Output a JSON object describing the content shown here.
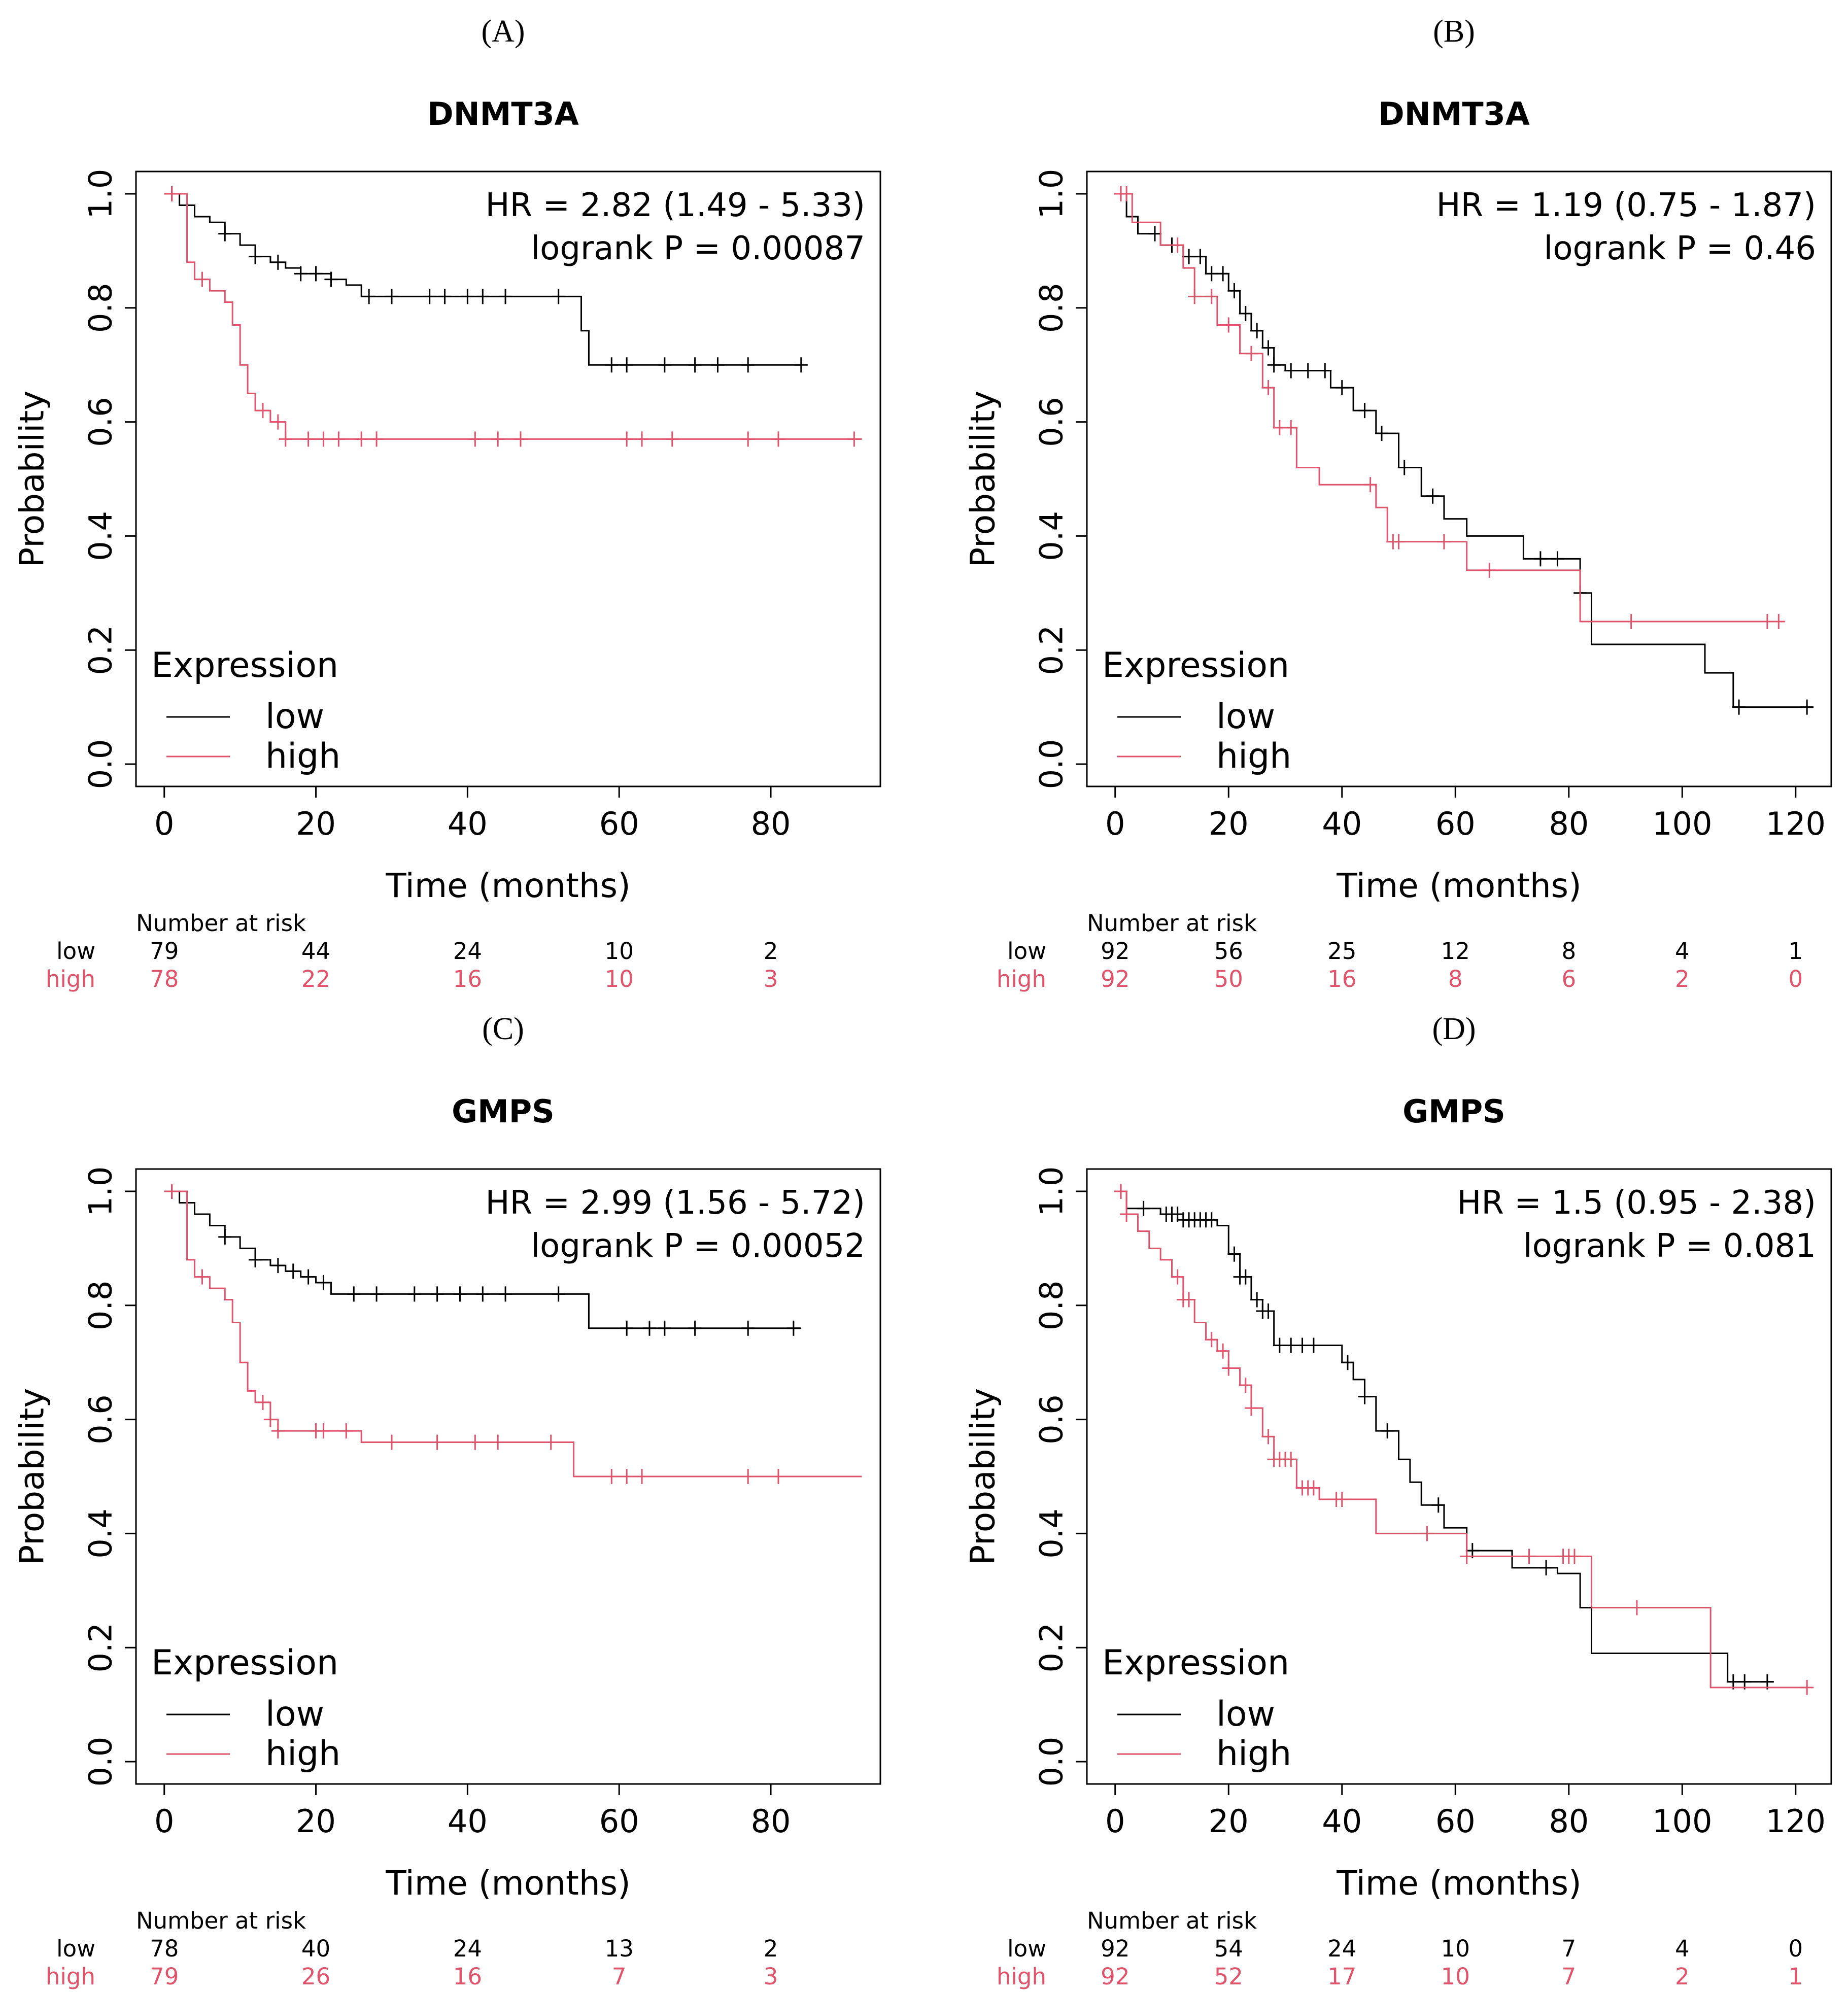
{
  "colors": {
    "low": "#000000",
    "high": "#DF536B"
  },
  "chart_data": [
    {
      "panel": "(A)",
      "type": "line",
      "title": "DNMT3A",
      "xlabel": "Time (months)",
      "ylabel": "Probability",
      "xlim": [
        0,
        92
      ],
      "ylim": [
        0,
        1
      ],
      "xticks": [
        0,
        20,
        40,
        60,
        80
      ],
      "yticks": [
        "0.0",
        "0.2",
        "0.4",
        "0.6",
        "0.8",
        "1.0"
      ],
      "hr_text": "HR = 2.82 (1.49 - 5.33)",
      "logrank_text": "logrank P = 0.00087",
      "legend_title": "Expression",
      "legend": [
        "low",
        "high"
      ],
      "risk_header": "Number at risk",
      "risk_rows": [
        {
          "label": "low",
          "values": [
            "79",
            "44",
            "24",
            "10",
            "2"
          ]
        },
        {
          "label": "high",
          "values": [
            "78",
            "22",
            "16",
            "10",
            "3"
          ]
        }
      ],
      "series": [
        {
          "name": "low",
          "x": [
            0,
            2,
            4,
            6,
            8,
            10,
            12,
            14,
            16,
            18,
            20,
            22,
            24,
            26,
            55,
            56,
            84
          ],
          "y": [
            1.0,
            0.98,
            0.96,
            0.95,
            0.93,
            0.91,
            0.89,
            0.88,
            0.87,
            0.86,
            0.86,
            0.85,
            0.84,
            0.82,
            0.76,
            0.7,
            0.7
          ],
          "censor_x": [
            1,
            8,
            12,
            15,
            18,
            20,
            22,
            27,
            30,
            35,
            37,
            40,
            42,
            45,
            52,
            59,
            61,
            66,
            70,
            73,
            77,
            84
          ]
        },
        {
          "name": "high",
          "x": [
            0,
            3,
            4,
            6,
            8,
            9,
            10,
            11,
            12,
            14,
            16,
            92
          ],
          "y": [
            1.0,
            0.88,
            0.85,
            0.83,
            0.81,
            0.77,
            0.7,
            0.65,
            0.62,
            0.6,
            0.57,
            0.57
          ],
          "censor_x": [
            1,
            5,
            13,
            15,
            16,
            19,
            21,
            23,
            26,
            28,
            41,
            44,
            47,
            61,
            63,
            67,
            77,
            81,
            91
          ]
        }
      ]
    },
    {
      "panel": "(B)",
      "type": "line",
      "title": "DNMT3A",
      "xlabel": "Time (months)",
      "ylabel": "Probability",
      "xlim": [
        0,
        123
      ],
      "ylim": [
        0,
        1
      ],
      "xticks": [
        0,
        20,
        40,
        60,
        80,
        100,
        120
      ],
      "yticks": [
        "0.0",
        "0.2",
        "0.4",
        "0.6",
        "0.8",
        "1.0"
      ],
      "hr_text": "HR = 1.19 (0.75 - 1.87)",
      "logrank_text": "logrank P = 0.46",
      "legend_title": "Expression",
      "legend": [
        "low",
        "high"
      ],
      "risk_header": "Number at risk",
      "risk_rows": [
        {
          "label": "low",
          "values": [
            "92",
            "56",
            "25",
            "12",
            "8",
            "4",
            "1"
          ]
        },
        {
          "label": "high",
          "values": [
            "92",
            "50",
            "16",
            "8",
            "6",
            "2",
            "0"
          ]
        }
      ],
      "series": [
        {
          "name": "low",
          "x": [
            0,
            2,
            4,
            8,
            12,
            16,
            20,
            22,
            24,
            26,
            28,
            30,
            38,
            42,
            46,
            50,
            54,
            58,
            62,
            72,
            82,
            84,
            92,
            104,
            109,
            123
          ],
          "y": [
            1.0,
            0.96,
            0.93,
            0.91,
            0.89,
            0.86,
            0.83,
            0.79,
            0.76,
            0.73,
            0.7,
            0.69,
            0.66,
            0.62,
            0.58,
            0.52,
            0.47,
            0.43,
            0.4,
            0.36,
            0.3,
            0.21,
            0.21,
            0.16,
            0.1,
            0.1
          ],
          "censor_x": [
            1,
            7,
            10,
            13,
            15,
            17,
            19,
            21,
            23,
            25,
            27,
            28,
            31,
            34,
            37,
            40,
            44,
            47,
            51,
            56,
            75,
            78,
            82,
            110,
            122
          ]
        },
        {
          "name": "high",
          "x": [
            0,
            3,
            8,
            12,
            14,
            18,
            22,
            26,
            28,
            32,
            36,
            46,
            48,
            62,
            82,
            84,
            116
          ],
          "y": [
            1.0,
            0.95,
            0.91,
            0.87,
            0.82,
            0.77,
            0.72,
            0.66,
            0.59,
            0.52,
            0.49,
            0.45,
            0.39,
            0.34,
            0.25,
            0.25,
            0.25
          ],
          "censor_x": [
            1,
            2,
            11,
            14,
            17,
            20,
            24,
            27,
            29,
            31,
            45,
            49,
            50,
            58,
            66,
            91,
            115,
            117
          ]
        }
      ]
    },
    {
      "panel": "(C)",
      "type": "line",
      "title": "GMPS",
      "xlabel": "Time (months)",
      "ylabel": "Probability",
      "xlim": [
        0,
        92
      ],
      "ylim": [
        0,
        1
      ],
      "xticks": [
        0,
        20,
        40,
        60,
        80
      ],
      "yticks": [
        "0.0",
        "0.2",
        "0.4",
        "0.6",
        "0.8",
        "1.0"
      ],
      "hr_text": "HR = 2.99 (1.56 - 5.72)",
      "logrank_text": "logrank P = 0.00052",
      "legend_title": "Expression",
      "legend": [
        "low",
        "high"
      ],
      "risk_header": "Number at risk",
      "risk_rows": [
        {
          "label": "low",
          "values": [
            "78",
            "40",
            "24",
            "13",
            "2"
          ]
        },
        {
          "label": "high",
          "values": [
            "79",
            "26",
            "16",
            "7",
            "3"
          ]
        }
      ],
      "series": [
        {
          "name": "low",
          "x": [
            0,
            2,
            4,
            6,
            8,
            10,
            12,
            14,
            16,
            18,
            20,
            22,
            56,
            84
          ],
          "y": [
            1.0,
            0.98,
            0.96,
            0.94,
            0.92,
            0.9,
            0.88,
            0.87,
            0.86,
            0.85,
            0.84,
            0.82,
            0.76,
            0.76
          ],
          "censor_x": [
            1,
            8,
            12,
            15,
            17,
            19,
            21,
            25,
            28,
            33,
            36,
            39,
            42,
            45,
            52,
            61,
            64,
            66,
            70,
            77,
            83
          ]
        },
        {
          "name": "high",
          "x": [
            0,
            3,
            4,
            6,
            8,
            9,
            10,
            11,
            12,
            14,
            15,
            26,
            54,
            92
          ],
          "y": [
            1.0,
            0.88,
            0.85,
            0.83,
            0.81,
            0.77,
            0.7,
            0.65,
            0.63,
            0.6,
            0.58,
            0.56,
            0.5,
            0.5
          ],
          "censor_x": [
            1,
            5,
            13,
            14,
            15,
            20,
            21,
            24,
            30,
            36,
            41,
            44,
            51,
            59,
            61,
            63,
            77,
            81
          ]
        }
      ]
    },
    {
      "panel": "(D)",
      "type": "line",
      "title": "GMPS",
      "xlabel": "Time (months)",
      "ylabel": "Probability",
      "xlim": [
        0,
        123
      ],
      "ylim": [
        0,
        1
      ],
      "xticks": [
        0,
        20,
        40,
        60,
        80,
        100,
        120
      ],
      "yticks": [
        "0.0",
        "0.2",
        "0.4",
        "0.6",
        "0.8",
        "1.0"
      ],
      "hr_text": "HR = 1.5 (0.95 - 2.38)",
      "logrank_text": "logrank P = 0.081",
      "legend_title": "Expression",
      "legend": [
        "low",
        "high"
      ],
      "risk_header": "Number at risk",
      "risk_rows": [
        {
          "label": "low",
          "values": [
            "92",
            "54",
            "24",
            "10",
            "7",
            "4",
            "0"
          ]
        },
        {
          "label": "high",
          "values": [
            "92",
            "52",
            "17",
            "10",
            "7",
            "2",
            "1"
          ]
        }
      ],
      "series": [
        {
          "name": "low",
          "x": [
            0,
            2,
            8,
            12,
            18,
            20,
            22,
            24,
            26,
            28,
            40,
            42,
            44,
            46,
            50,
            52,
            54,
            58,
            62,
            70,
            78,
            82,
            84,
            108,
            116
          ],
          "y": [
            1.0,
            0.97,
            0.96,
            0.95,
            0.94,
            0.89,
            0.85,
            0.81,
            0.79,
            0.73,
            0.7,
            0.67,
            0.64,
            0.58,
            0.53,
            0.49,
            0.45,
            0.41,
            0.37,
            0.34,
            0.33,
            0.27,
            0.19,
            0.14,
            0.14
          ],
          "censor_x": [
            1,
            5,
            9,
            10,
            11,
            12,
            13,
            14,
            15,
            16,
            17,
            21,
            22,
            23,
            25,
            26,
            27,
            29,
            31,
            33,
            35,
            41,
            44,
            48,
            57,
            63,
            76,
            109,
            111,
            115
          ]
        },
        {
          "name": "high",
          "x": [
            0,
            2,
            4,
            6,
            8,
            10,
            12,
            14,
            16,
            18,
            20,
            22,
            24,
            26,
            28,
            32,
            36,
            46,
            62,
            84,
            105,
            122
          ],
          "y": [
            1.0,
            0.96,
            0.93,
            0.9,
            0.88,
            0.85,
            0.81,
            0.77,
            0.74,
            0.72,
            0.69,
            0.66,
            0.62,
            0.57,
            0.53,
            0.48,
            0.46,
            0.4,
            0.36,
            0.27,
            0.13,
            0.13
          ],
          "censor_x": [
            1,
            2,
            11,
            12,
            13,
            17,
            19,
            20,
            23,
            24,
            27,
            28,
            29,
            30,
            31,
            33,
            34,
            35,
            39,
            40,
            55,
            62,
            73,
            79,
            80,
            81,
            92,
            122
          ]
        }
      ]
    }
  ]
}
